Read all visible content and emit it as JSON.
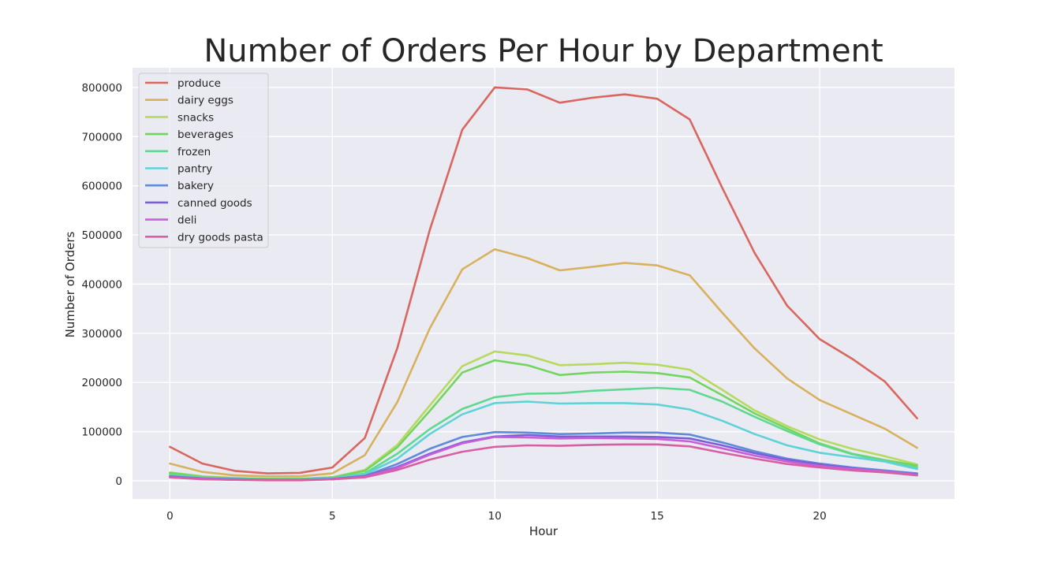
{
  "chart_data": {
    "type": "line",
    "title": "Number of Orders Per Hour by Department",
    "xlabel": "Hour",
    "ylabel": "Number of Orders",
    "xlim": [
      -1.15,
      24.15
    ],
    "ylim": [
      -37000,
      840000
    ],
    "xticks": [
      0,
      5,
      10,
      15,
      20
    ],
    "yticks": [
      0,
      100000,
      200000,
      300000,
      400000,
      500000,
      600000,
      700000,
      800000
    ],
    "grid": true,
    "legend_position": "top-left",
    "background": "#eaeaf2",
    "x": [
      0,
      1,
      2,
      3,
      4,
      5,
      6,
      7,
      8,
      9,
      10,
      11,
      12,
      13,
      14,
      15,
      16,
      17,
      18,
      19,
      20,
      21,
      22,
      23
    ],
    "series": [
      {
        "name": "produce",
        "color": "#d9665f",
        "values": [
          69000,
          35000,
          20000,
          15000,
          16000,
          27000,
          87000,
          270000,
          510000,
          714000,
          800000,
          796000,
          769000,
          779000,
          786000,
          777000,
          735000,
          596000,
          463000,
          356000,
          288000,
          248000,
          202000,
          127000
        ]
      },
      {
        "name": "dairy eggs",
        "color": "#d8b15d",
        "values": [
          35000,
          18000,
          11000,
          9000,
          9000,
          15000,
          52000,
          160000,
          310000,
          430000,
          471000,
          453000,
          428000,
          435000,
          443000,
          438000,
          418000,
          342000,
          269000,
          208000,
          164000,
          135000,
          106000,
          67000
        ]
      },
      {
        "name": "snacks",
        "color": "#b8d95f",
        "values": [
          17000,
          9000,
          6000,
          4000,
          4000,
          7000,
          22000,
          73000,
          153000,
          233000,
          263000,
          255000,
          235000,
          237000,
          240000,
          236000,
          226000,
          185000,
          143000,
          111000,
          84000,
          65000,
          50000,
          33000
        ]
      },
      {
        "name": "beverages",
        "color": "#72d65e",
        "values": [
          16000,
          8000,
          5000,
          4000,
          4000,
          7000,
          20000,
          68000,
          142000,
          220000,
          245000,
          235000,
          215000,
          220000,
          222000,
          219000,
          210000,
          174000,
          137000,
          106000,
          76000,
          55000,
          42000,
          31000
        ]
      },
      {
        "name": "frozen",
        "color": "#5fd890",
        "values": [
          13000,
          7000,
          4000,
          3000,
          3000,
          5000,
          15000,
          55000,
          105000,
          146000,
          170000,
          177000,
          178000,
          183000,
          186000,
          189000,
          185000,
          161000,
          130000,
          101000,
          74000,
          54000,
          40000,
          27000
        ]
      },
      {
        "name": "pantry",
        "color": "#5fd2d8",
        "values": [
          10000,
          6000,
          4000,
          3000,
          3000,
          5000,
          13000,
          45000,
          95000,
          135000,
          158000,
          161000,
          157000,
          158000,
          158000,
          155000,
          145000,
          122000,
          95000,
          72000,
          57000,
          48000,
          39000,
          24000
        ]
      },
      {
        "name": "bakery",
        "color": "#5f8bd8",
        "values": [
          9000,
          5000,
          3000,
          2000,
          2000,
          4000,
          10000,
          34000,
          65000,
          89000,
          99000,
          98000,
          95000,
          96000,
          98000,
          98000,
          94000,
          78000,
          60000,
          45000,
          35000,
          27000,
          21000,
          15000
        ]
      },
      {
        "name": "canned goods",
        "color": "#7c5fd8",
        "values": [
          8000,
          4000,
          3000,
          2000,
          2000,
          3000,
          9000,
          28000,
          55000,
          78000,
          90000,
          93000,
          90000,
          90000,
          90000,
          89000,
          86000,
          72000,
          56000,
          43000,
          33000,
          25000,
          19000,
          13000
        ]
      },
      {
        "name": "deli",
        "color": "#c85fd8",
        "values": [
          7000,
          4000,
          2000,
          2000,
          2000,
          3000,
          8000,
          26000,
          53000,
          76000,
          89000,
          88000,
          86000,
          87000,
          86000,
          85000,
          80000,
          66000,
          51000,
          39000,
          30000,
          24000,
          19000,
          12000
        ]
      },
      {
        "name": "dry goods pasta",
        "color": "#d85fa3",
        "values": [
          7000,
          3000,
          2000,
          1000,
          1000,
          3000,
          7000,
          22000,
          43000,
          59000,
          69000,
          72000,
          71000,
          73000,
          74000,
          74000,
          70000,
          57000,
          45000,
          34000,
          27000,
          21000,
          17000,
          11000
        ]
      }
    ]
  }
}
